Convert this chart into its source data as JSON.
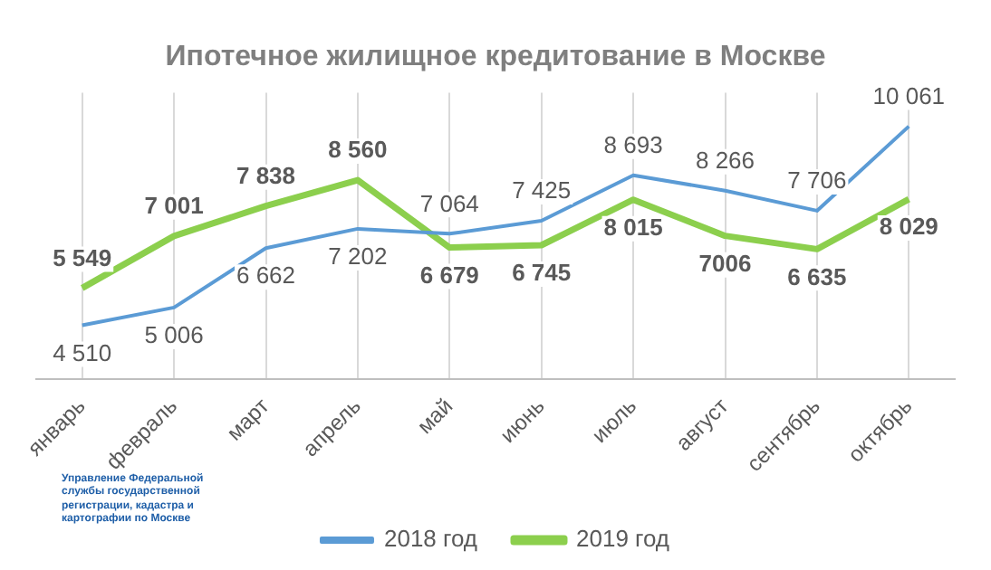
{
  "chart_data": {
    "type": "line",
    "title": "Ипотечное жилищное кредитование в Москве",
    "categories": [
      "январь",
      "февраль",
      "март",
      "апрель",
      "май",
      "июнь",
      "июль",
      "август",
      "сентябрь",
      "октябрь"
    ],
    "series": [
      {
        "name": "2018 год",
        "color": "#5b9bd5",
        "values": [
          4510,
          5006,
          6662,
          7202,
          7064,
          7425,
          8693,
          8266,
          7706,
          10061
        ],
        "value_labels": [
          "4 510",
          "5 006",
          "6 662",
          "7 202",
          "7 064",
          "7 425",
          "8 693",
          "8 266",
          "7 706",
          "10 061"
        ]
      },
      {
        "name": "2019 год",
        "color": "#8ccf4d",
        "values": [
          5549,
          7001,
          7838,
          8560,
          6679,
          6745,
          8015,
          7006,
          6635,
          8029
        ],
        "value_labels": [
          "5 549",
          "7 001",
          "7 838",
          "8 560",
          "6 679",
          "6 745",
          "8 015",
          "7006",
          "6 635",
          "8 029"
        ]
      }
    ],
    "grid": "x",
    "legend": "bottom",
    "marker": "none",
    "line_style": "solid",
    "annotations": [
      "Управление Федеральной службы государственной регистрации, кадастра и картографии по Москве"
    ]
  }
}
